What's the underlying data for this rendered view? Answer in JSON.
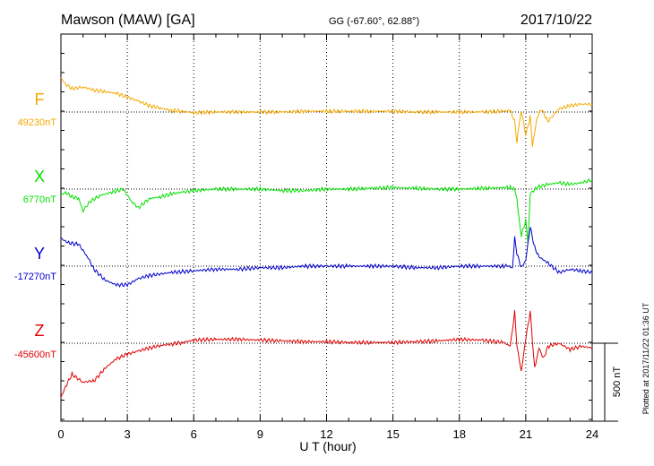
{
  "header": {
    "station": "Mawson (MAW)  [GA]",
    "coords": "GG (-67.60°,  62.88°)",
    "date": "2017/10/22"
  },
  "side_note": "Plotted at 2017/11/22 01:36 UT",
  "scale_label": "500 nT",
  "chart_data": {
    "type": "line",
    "title": "Mawson (MAW)  [GA]",
    "xlabel": "U T (hour)",
    "ylabel": "",
    "xlim": [
      0,
      24
    ],
    "x_ticks": [
      "0",
      "3",
      "6",
      "9",
      "12",
      "15",
      "18",
      "21",
      "24"
    ],
    "scale_bar_nT": 500,
    "grid": "dotted vertical lines every 3 h, dotted baseline per trace",
    "colors": {
      "F": "#f5a800",
      "X": "#00e000",
      "Y": "#0000cc",
      "Z": "#e00000"
    },
    "series": [
      {
        "name": "F",
        "baseline_label": "49230nT",
        "x": [
          0,
          0.2,
          0.5,
          1,
          1.5,
          2,
          2.5,
          3,
          3.5,
          4,
          4.5,
          5,
          5.5,
          6,
          7,
          8,
          9,
          10,
          11,
          12,
          13,
          14,
          15,
          16,
          17,
          18,
          19,
          20,
          20.3,
          20.5,
          20.6,
          20.7,
          20.8,
          21,
          21.2,
          21.3,
          21.5,
          21.7,
          22,
          22.5,
          23,
          23.5,
          24
        ],
        "values": [
          220,
          180,
          150,
          160,
          140,
          130,
          120,
          95,
          70,
          40,
          25,
          10,
          5,
          -5,
          0,
          0,
          0,
          0,
          5,
          5,
          5,
          5,
          5,
          0,
          0,
          0,
          0,
          5,
          10,
          -60,
          -200,
          -80,
          10,
          -150,
          -30,
          -220,
          -40,
          20,
          -60,
          20,
          40,
          50,
          50
        ]
      },
      {
        "name": "X",
        "baseline_label": "6770nT",
        "x": [
          0,
          0.2,
          0.5,
          0.8,
          1,
          1.3,
          1.8,
          2.3,
          2.8,
          3.2,
          3.5,
          4,
          4.5,
          5,
          5.5,
          6,
          7,
          8,
          9,
          10,
          11,
          12,
          13,
          14,
          15,
          16,
          17,
          18,
          19,
          20,
          20.3,
          20.5,
          20.6,
          20.7,
          20.8,
          21,
          21.1,
          21.2,
          21.5,
          22,
          22.5,
          23,
          23.5,
          24
        ],
        "values": [
          -40,
          -20,
          -50,
          -60,
          -140,
          -80,
          -40,
          -20,
          0,
          -80,
          -120,
          -60,
          -50,
          -30,
          -20,
          -10,
          0,
          0,
          0,
          -10,
          -10,
          0,
          0,
          5,
          10,
          5,
          0,
          0,
          5,
          10,
          10,
          0,
          -60,
          -200,
          -300,
          -200,
          -350,
          -30,
          10,
          30,
          40,
          30,
          40,
          60
        ]
      },
      {
        "name": "Y",
        "baseline_label": "-17270nT",
        "x": [
          0,
          0.3,
          0.8,
          1.2,
          1.5,
          2,
          2.5,
          3,
          3.5,
          4,
          5,
          6,
          7,
          8,
          9,
          10,
          11,
          12,
          13,
          14,
          15,
          16,
          17,
          18,
          19,
          20,
          20.2,
          20.4,
          20.5,
          20.6,
          20.8,
          21,
          21.2,
          21.4,
          21.6,
          22,
          22.5,
          23,
          23.5,
          24
        ],
        "values": [
          180,
          150,
          140,
          60,
          -20,
          -90,
          -120,
          -120,
          -80,
          -60,
          -40,
          -30,
          -20,
          -20,
          -10,
          -10,
          0,
          0,
          0,
          0,
          0,
          -10,
          -10,
          0,
          0,
          0,
          0,
          -10,
          180,
          80,
          -10,
          40,
          250,
          120,
          60,
          20,
          -40,
          -20,
          -30,
          -40
        ]
      },
      {
        "name": "Z",
        "baseline_label": "-45600nT",
        "x": [
          0,
          0.2,
          0.5,
          1,
          1.5,
          2,
          2.5,
          3,
          3.5,
          4,
          4.5,
          5,
          5.5,
          6,
          7,
          8,
          9,
          10,
          11,
          12,
          13,
          14,
          15,
          16,
          17,
          18,
          19,
          20,
          20.3,
          20.5,
          20.6,
          20.8,
          21,
          21.2,
          21.4,
          21.6,
          21.8,
          22,
          22.5,
          23,
          23.5,
          24
        ],
        "values": [
          -350,
          -280,
          -200,
          -250,
          -240,
          -160,
          -100,
          -70,
          -50,
          -30,
          -15,
          -5,
          5,
          20,
          25,
          25,
          20,
          15,
          10,
          10,
          5,
          5,
          5,
          10,
          15,
          25,
          20,
          5,
          -20,
          200,
          -20,
          -180,
          30,
          200,
          -160,
          -30,
          -100,
          -20,
          0,
          -40,
          -20,
          -30
        ]
      }
    ]
  }
}
